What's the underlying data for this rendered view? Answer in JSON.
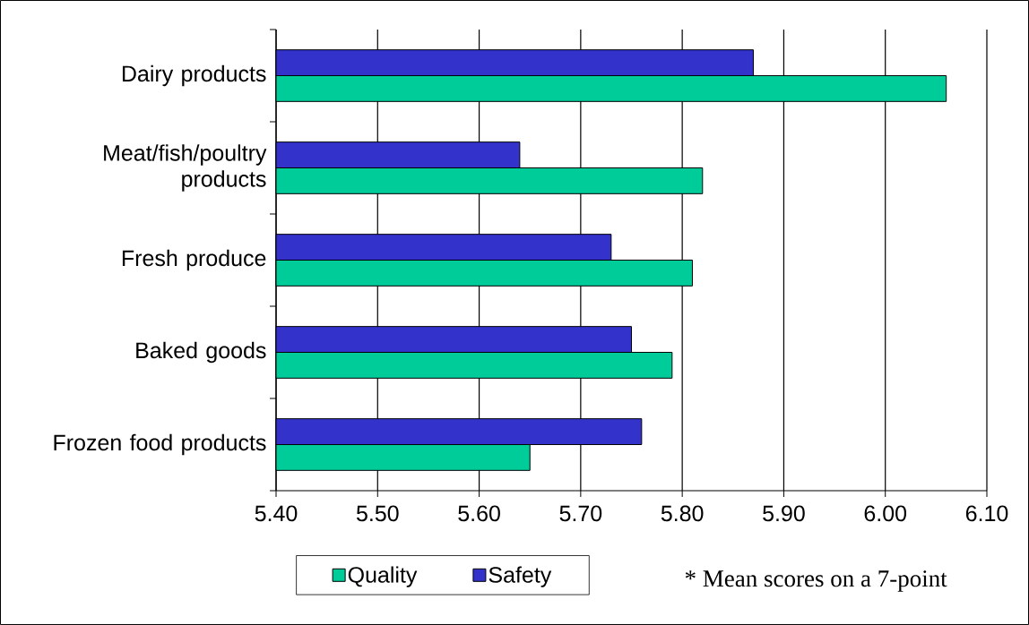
{
  "chart_data": {
    "type": "bar",
    "orientation": "horizontal",
    "categories": [
      "Dairy products",
      "Meat/fish/poultry products",
      "Fresh produce",
      "Baked goods",
      "Frozen food products"
    ],
    "series": [
      {
        "name": "Quality",
        "color": "#00cc99",
        "values": [
          6.06,
          5.82,
          5.81,
          5.79,
          5.65
        ]
      },
      {
        "name": "Safety",
        "color": "#3333cc",
        "values": [
          5.87,
          5.64,
          5.73,
          5.75,
          5.76
        ]
      }
    ],
    "xlim": [
      5.4,
      6.1
    ],
    "xticks": [
      {
        "value": 5.4,
        "label": "5.40"
      },
      {
        "value": 5.5,
        "label": "5.50"
      },
      {
        "value": 5.6,
        "label": "5.60"
      },
      {
        "value": 5.7,
        "label": "5.70"
      },
      {
        "value": 5.8,
        "label": "5.80"
      },
      {
        "value": 5.9,
        "label": "5.90"
      },
      {
        "value": 6.0,
        "label": "6.00"
      },
      {
        "value": 6.1,
        "label": "6.10"
      }
    ],
    "grid": "x",
    "legend": "bottom",
    "annotations": [
      "* Mean scores on a 7-point"
    ]
  }
}
